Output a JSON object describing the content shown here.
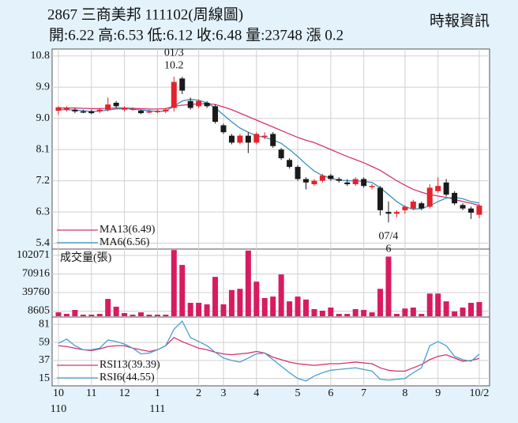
{
  "header": {
    "title": "2867 三商美邦 111102(周線圖)",
    "quote": "開:6.22 高:6.53 低:6.12 收:6.48 量:23748 漲 0.2",
    "source": "時報資訊"
  },
  "chart_data": [
    {
      "type": "candlestick",
      "open": [
        9.22,
        9.25,
        9.25,
        9.2,
        9.2,
        9.2,
        9.25,
        9.45,
        9.25,
        9.28,
        9.22,
        9.2,
        9.18,
        9.2,
        9.3,
        10.15,
        9.5,
        9.35,
        9.45,
        9.35,
        8.8,
        8.5,
        8.3,
        8.5,
        8.3,
        8.5,
        8.55,
        8.1,
        7.8,
        7.6,
        7.25,
        7.1,
        7.2,
        7.35,
        7.25,
        7.15,
        7.1,
        7.25,
        7.05,
        7.0,
        6.3,
        6.25,
        6.35,
        6.4,
        6.55,
        6.45,
        6.9,
        7.15,
        6.85,
        6.5,
        6.4,
        6.22
      ],
      "high": [
        9.35,
        9.35,
        9.3,
        9.25,
        9.25,
        9.3,
        9.6,
        9.5,
        9.35,
        9.32,
        9.25,
        9.25,
        9.25,
        9.3,
        10.2,
        10.2,
        9.6,
        9.55,
        9.5,
        9.4,
        8.85,
        8.55,
        8.55,
        8.6,
        8.6,
        8.6,
        8.6,
        8.15,
        7.85,
        7.65,
        7.3,
        7.25,
        7.4,
        7.4,
        7.3,
        7.25,
        7.3,
        7.3,
        7.1,
        7.05,
        6.6,
        6.35,
        6.5,
        6.65,
        6.6,
        7.1,
        7.3,
        7.25,
        6.9,
        6.55,
        6.45,
        6.53
      ],
      "low": [
        9.1,
        9.2,
        9.15,
        9.15,
        9.12,
        9.15,
        9.2,
        9.3,
        9.2,
        9.22,
        9.12,
        9.15,
        9.15,
        9.15,
        9.2,
        9.7,
        9.25,
        9.3,
        9.3,
        8.85,
        8.55,
        8.25,
        8.25,
        8.0,
        8.25,
        8.4,
        8.15,
        7.8,
        7.55,
        7.2,
        6.95,
        7.05,
        7.15,
        7.2,
        7.15,
        7.05,
        7.05,
        7.0,
        6.95,
        6.2,
        6.0,
        6.15,
        6.25,
        6.35,
        6.35,
        6.4,
        6.85,
        6.75,
        6.5,
        6.35,
        6.1,
        6.12
      ],
      "close": [
        9.32,
        9.3,
        9.2,
        9.18,
        9.15,
        9.25,
        9.4,
        9.35,
        9.3,
        9.28,
        9.15,
        9.2,
        9.22,
        9.25,
        10.05,
        9.8,
        9.3,
        9.5,
        9.35,
        8.9,
        8.6,
        8.3,
        8.5,
        8.3,
        8.55,
        8.5,
        8.2,
        7.85,
        7.6,
        7.25,
        7.15,
        7.2,
        7.35,
        7.25,
        7.2,
        7.1,
        7.25,
        7.05,
        7.05,
        6.35,
        6.25,
        6.3,
        6.45,
        6.6,
        6.4,
        7.0,
        7.05,
        6.8,
        6.55,
        6.4,
        6.28,
        6.48
      ],
      "up_color": "#e3232b",
      "down_color": "#1a1a1a",
      "series": [
        {
          "name": "MA13(6.49)",
          "color": "#d6336c",
          "values": [
            9.3,
            9.3,
            9.3,
            9.29,
            9.28,
            9.28,
            9.29,
            9.3,
            9.3,
            9.29,
            9.28,
            9.27,
            9.27,
            9.28,
            9.35,
            9.38,
            9.4,
            9.42,
            9.42,
            9.4,
            9.33,
            9.25,
            9.15,
            9.05,
            8.95,
            8.85,
            8.75,
            8.65,
            8.55,
            8.45,
            8.37,
            8.3,
            8.2,
            8.1,
            8.0,
            7.9,
            7.81,
            7.72,
            7.61,
            7.5,
            7.35,
            7.2,
            7.07,
            6.95,
            6.87,
            6.8,
            6.76,
            6.72,
            6.66,
            6.6,
            6.55,
            6.49
          ]
        },
        {
          "name": "MA6(6.56)",
          "color": "#3b8fc0",
          "values": [
            9.25,
            9.25,
            9.24,
            9.22,
            9.2,
            9.21,
            9.24,
            9.27,
            9.28,
            9.27,
            9.24,
            9.22,
            9.2,
            9.21,
            9.35,
            9.5,
            9.55,
            9.52,
            9.45,
            9.3,
            9.1,
            8.9,
            8.72,
            8.6,
            8.5,
            8.45,
            8.38,
            8.28,
            8.1,
            7.9,
            7.68,
            7.48,
            7.35,
            7.27,
            7.22,
            7.2,
            7.2,
            7.18,
            7.15,
            7.0,
            6.8,
            6.6,
            6.45,
            6.38,
            6.4,
            6.48,
            6.6,
            6.7,
            6.72,
            6.68,
            6.6,
            6.56
          ]
        }
      ],
      "annotations": [
        {
          "date": "01/3",
          "value": 10.2,
          "field": "high"
        },
        {
          "date": "07/4",
          "value": 6,
          "field": "low"
        }
      ],
      "ylim": [
        5.23,
        11.0
      ],
      "yticks": [
        5.4,
        6.3,
        7.2,
        8.1,
        {
          "value": 9,
          "label": "9.0"
        },
        9.9,
        10.8
      ],
      "grid": true
    },
    {
      "type": "bar",
      "series": [
        {
          "name": "成交量(張)",
          "color": "#d81b60",
          "values": [
            6600,
            4000,
            10600,
            2700,
            2700,
            4000,
            29000,
            16000,
            5300,
            2700,
            6600,
            2700,
            2700,
            2700,
            111000,
            86000,
            22500,
            22500,
            20000,
            66000,
            20000,
            44000,
            46000,
            110000,
            58000,
            30500,
            33000,
            70000,
            25000,
            33000,
            28000,
            12000,
            9300,
            14600,
            4000,
            4000,
            12000,
            10600,
            6600,
            46000,
            100000,
            4000,
            13000,
            14600,
            4000,
            38000,
            38000,
            25000,
            8000,
            14600,
            22500,
            23748
          ]
        }
      ],
      "ylim": [
        0,
        112600
      ],
      "yticks": [
        8605,
        39760,
        70916,
        102071
      ],
      "grid": true
    },
    {
      "type": "line",
      "series": [
        {
          "name": "RSI13(39.39)",
          "color": "#d6336c",
          "values": [
            55,
            54,
            52,
            50,
            49,
            51,
            54,
            55,
            55,
            52,
            50,
            48,
            50,
            55,
            65,
            60,
            56,
            52,
            50,
            47,
            45,
            44,
            45,
            46,
            48,
            46,
            41,
            38,
            35,
            33,
            32,
            31,
            32,
            33,
            33,
            34,
            35,
            34,
            33,
            28,
            25,
            24,
            24,
            28,
            32,
            38,
            42,
            44,
            40,
            36,
            37,
            39.39
          ]
        },
        {
          "name": "RSI6(44.55)",
          "color": "#4a9fd0",
          "values": [
            58,
            63,
            55,
            50,
            50,
            52,
            62,
            60,
            57,
            52,
            45,
            46,
            50,
            55,
            75,
            85,
            65,
            60,
            55,
            47,
            40,
            37,
            35,
            40,
            45,
            46,
            38,
            30,
            22,
            15,
            12,
            18,
            22,
            25,
            26,
            27,
            28,
            26,
            24,
            14,
            13,
            14,
            15,
            22,
            28,
            55,
            60,
            55,
            42,
            38,
            36,
            44.55
          ]
        }
      ],
      "categories": [
        "10",
        null,
        null,
        null,
        "11",
        null,
        null,
        null,
        "12",
        null,
        null,
        null,
        "1",
        null,
        null,
        null,
        null,
        "2",
        null,
        null,
        "3",
        null,
        null,
        null,
        "4",
        null,
        null,
        null,
        null,
        "5",
        null,
        null,
        null,
        "6",
        null,
        null,
        null,
        "7",
        null,
        null,
        null,
        null,
        "8",
        null,
        null,
        null,
        "9",
        null,
        null,
        null,
        null,
        "10/2"
      ],
      "years": [
        "110",
        null,
        null,
        null,
        null,
        null,
        null,
        null,
        null,
        null,
        null,
        null,
        "111",
        null,
        null,
        null,
        null,
        null,
        null,
        null,
        null,
        null,
        null,
        null,
        null,
        null,
        null,
        null,
        null,
        null,
        null,
        null,
        null,
        null,
        null,
        null,
        null,
        null,
        null,
        null,
        null,
        null,
        null,
        null,
        null,
        null,
        null,
        null,
        null,
        null,
        null,
        null
      ],
      "ylim": [
        6,
        89
      ],
      "yticks": [
        15,
        37,
        59,
        81
      ],
      "grid": true
    }
  ]
}
